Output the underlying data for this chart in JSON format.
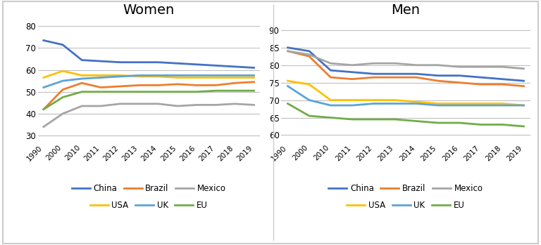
{
  "years": [
    1990,
    2000,
    2010,
    2011,
    2012,
    2013,
    2014,
    2015,
    2016,
    2017,
    2018,
    2019
  ],
  "women": {
    "China": [
      73.5,
      71.5,
      64.5,
      64.0,
      63.5,
      63.5,
      63.5,
      63.0,
      62.5,
      62.0,
      61.5,
      61.0
    ],
    "Brazil": [
      42.0,
      51.0,
      54.0,
      52.0,
      52.5,
      53.0,
      53.0,
      53.5,
      53.0,
      53.0,
      54.0,
      54.5
    ],
    "Mexico": [
      34.0,
      40.0,
      43.5,
      43.5,
      44.5,
      44.5,
      44.5,
      43.5,
      44.0,
      44.0,
      44.5,
      44.0
    ],
    "USA": [
      56.5,
      59.5,
      57.5,
      57.5,
      57.5,
      57.0,
      57.0,
      56.5,
      56.5,
      56.5,
      56.5,
      56.5
    ],
    "UK": [
      52.0,
      55.0,
      56.0,
      56.5,
      57.0,
      57.5,
      57.5,
      57.5,
      57.5,
      57.5,
      57.5,
      57.5
    ],
    "EU": [
      42.0,
      47.5,
      50.0,
      50.0,
      50.0,
      50.0,
      50.0,
      50.0,
      50.0,
      50.5,
      50.5,
      50.5
    ]
  },
  "men": {
    "China": [
      85.0,
      84.0,
      78.5,
      78.0,
      77.5,
      77.5,
      77.5,
      77.0,
      77.0,
      76.5,
      76.0,
      75.5
    ],
    "Brazil": [
      84.0,
      82.5,
      76.5,
      76.0,
      76.5,
      76.5,
      76.5,
      75.5,
      75.0,
      74.5,
      74.5,
      74.0
    ],
    "Mexico": [
      84.0,
      83.0,
      80.5,
      80.0,
      80.5,
      80.5,
      80.0,
      80.0,
      79.5,
      79.5,
      79.5,
      79.0
    ],
    "USA": [
      75.5,
      74.5,
      70.0,
      70.0,
      70.0,
      70.0,
      69.5,
      69.0,
      69.0,
      69.0,
      69.0,
      68.5
    ],
    "UK": [
      74.0,
      70.0,
      68.5,
      68.5,
      69.0,
      69.0,
      69.0,
      68.5,
      68.5,
      68.5,
      68.5,
      68.5
    ],
    "EU": [
      69.0,
      65.5,
      65.0,
      64.5,
      64.5,
      64.5,
      64.0,
      63.5,
      63.5,
      63.0,
      63.0,
      62.5
    ]
  },
  "colors": {
    "China": "#4472C4",
    "Brazil": "#ED7D31",
    "Mexico": "#A5A5A5",
    "USA": "#FFC000",
    "UK": "#5BA3D9",
    "EU": "#70AD47"
  },
  "women_ylim": [
    27,
    83
  ],
  "women_yticks": [
    30,
    40,
    50,
    60,
    70,
    80
  ],
  "men_ylim": [
    58,
    93
  ],
  "men_yticks": [
    60,
    65,
    70,
    75,
    80,
    85,
    90
  ],
  "title_women": "Women",
  "title_men": "Men",
  "legend_row1": [
    "China",
    "Brazil",
    "Mexico"
  ],
  "legend_row2": [
    "USA",
    "UK",
    "EU"
  ]
}
